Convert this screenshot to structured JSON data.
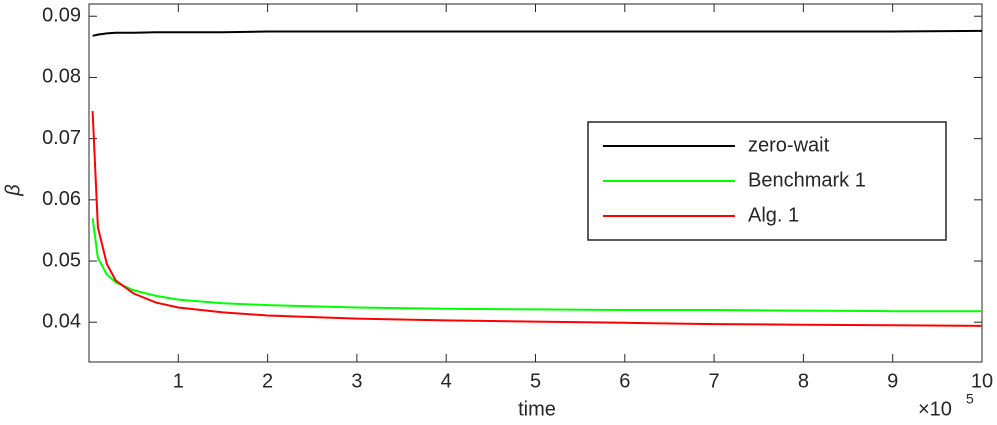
{
  "chart_data": {
    "type": "line",
    "x_label": "time",
    "y_label": "β",
    "x_multiplier": "×10",
    "x_exponent": "5",
    "x": [
      0.04,
      0.1,
      0.2,
      0.3,
      0.5,
      0.75,
      1,
      1.5,
      2,
      3,
      4,
      5,
      6,
      7,
      8,
      9,
      10
    ],
    "series": [
      {
        "name": "zero-wait",
        "color": "#000000",
        "values": [
          0.0868,
          0.087,
          0.0872,
          0.0873,
          0.0873,
          0.0874,
          0.0874,
          0.0874,
          0.0875,
          0.0875,
          0.0875,
          0.0875,
          0.0875,
          0.0875,
          0.0875,
          0.0875,
          0.0876
        ]
      },
      {
        "name": "Benchmark 1",
        "color": "#00ff00",
        "values": [
          0.057,
          0.0505,
          0.0478,
          0.0465,
          0.0452,
          0.0443,
          0.0437,
          0.0431,
          0.0428,
          0.0424,
          0.0422,
          0.0421,
          0.042,
          0.042,
          0.0419,
          0.0418,
          0.0418
        ]
      },
      {
        "name": "Alg. 1",
        "color": "#ff0000",
        "values": [
          0.0745,
          0.0555,
          0.0495,
          0.0468,
          0.0447,
          0.0432,
          0.0424,
          0.0416,
          0.0411,
          0.0406,
          0.0403,
          0.0401,
          0.0399,
          0.0397,
          0.0396,
          0.0395,
          0.0394
        ]
      }
    ],
    "xlim": [
      0,
      10
    ],
    "xticks": [
      1,
      2,
      3,
      4,
      5,
      6,
      7,
      8,
      9,
      10
    ],
    "ylim": [
      0.0335,
      0.092
    ],
    "yticks": [
      0.04,
      0.05,
      0.06,
      0.07,
      0.08,
      0.09
    ],
    "legend": "upper-right"
  }
}
